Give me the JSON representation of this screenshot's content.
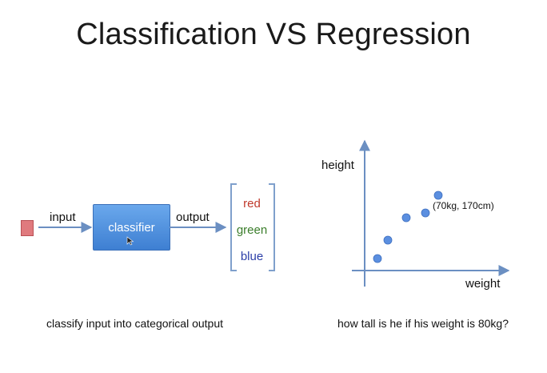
{
  "title": "Classification VS Regression",
  "classification": {
    "input_label": "input",
    "box_label": "classifier",
    "output_label": "output",
    "outputs": [
      {
        "text": "red",
        "color": "#c0392b"
      },
      {
        "text": "green",
        "color": "#3a7d2a"
      },
      {
        "text": "blue",
        "color": "#2c3fa8"
      }
    ],
    "caption": "classify input into categorical output"
  },
  "regression": {
    "y_label": "height",
    "x_label": "weight",
    "point_label": "(70kg, 170cm)",
    "caption": "how tall is he if his weight is 80kg?"
  },
  "colors": {
    "arrow": "#6b8fc2",
    "point": "#5b8fe0",
    "bracket": "#7fa0cc"
  }
}
